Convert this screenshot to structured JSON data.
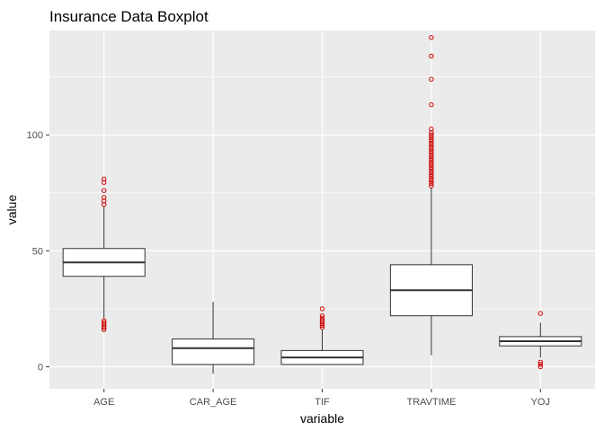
{
  "chart_data": {
    "type": "boxplot",
    "title": "Insurance Data Boxplot",
    "xlabel": "variable",
    "ylabel": "value",
    "ylim": [
      -9.5,
      145
    ],
    "yticks": [
      0,
      50,
      100
    ],
    "grid": true,
    "categories": [
      "AGE",
      "CAR_AGE",
      "TIF",
      "TRAVTIME",
      "YOJ"
    ],
    "boxes": [
      {
        "category": "AGE",
        "whisker_low": 20.5,
        "q1": 39,
        "median": 45,
        "q3": 51,
        "whisker_high": 69,
        "outliers": [
          16,
          16.8,
          17.5,
          18.3,
          19,
          19.8,
          70,
          71.5,
          73,
          76,
          79.5,
          81
        ]
      },
      {
        "category": "CAR_AGE",
        "whisker_low": -3,
        "q1": 1,
        "median": 8,
        "q3": 12,
        "whisker_high": 28,
        "outliers": []
      },
      {
        "category": "TIF",
        "whisker_low": 1,
        "q1": 1,
        "median": 4,
        "q3": 7,
        "whisker_high": 16,
        "outliers": [
          17,
          17.8,
          18.5,
          19.2,
          20,
          21,
          22,
          25
        ]
      },
      {
        "category": "TRAVTIME",
        "whisker_low": 5,
        "q1": 22,
        "median": 33,
        "q3": 44,
        "whisker_high": 77,
        "outliers": [
          78,
          79,
          80,
          81,
          82,
          83,
          84,
          85,
          86,
          87,
          88,
          89,
          90,
          91,
          92,
          93,
          94,
          95,
          96,
          97,
          98,
          99,
          100,
          101,
          102.5,
          113,
          124,
          134,
          142
        ]
      },
      {
        "category": "YOJ",
        "whisker_low": 4,
        "q1": 9,
        "median": 11,
        "q3": 13,
        "whisker_high": 19,
        "outliers": [
          0,
          1,
          2,
          23
        ]
      }
    ],
    "colors": {
      "panel_bg": "#ebebeb",
      "grid_major": "#ffffff",
      "box_fill": "#ffffff",
      "box_stroke": "#333333",
      "outlier": "#cc0000"
    }
  }
}
